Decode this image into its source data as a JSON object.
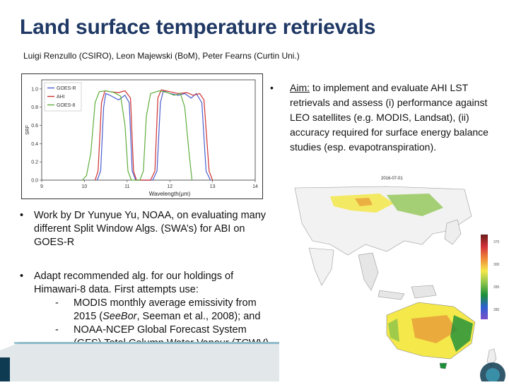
{
  "title": "Land surface temperature retrievals",
  "authors": "Luigi Renzullo (CSIRO), Leon Majewski (BoM), Peter Fearns (Curtin Uni.)",
  "aim": {
    "bullet": "•",
    "label": "Aim:",
    "text": " to implement and evaluate AHI LST retrievals and assess (i) performance against LEO satellites (e.g. MODIS, Landsat), (ii) accuracy required for surface energy balance studies (esp. evapotranspiration)."
  },
  "bullets": {
    "work": "Work by Dr Yunyue Yu, NOAA, on evaluating many different Split Window Algs. (SWA’s) for ABI on GOES-R",
    "adapt": "Adapt recommended alg. for our holdings of Himawari-8 data. First attempts use:",
    "sub": [
      {
        "dash": "-",
        "text_a": "MODIS monthly average emissivity from 2015 (",
        "italic": "SeeBor",
        "text_b": ", Seeman et al., 2008); and"
      },
      {
        "dash": "-",
        "text_a": "NOAA-NCEP Global Forecast System (GFS) Total Column Water Vapour (TCWV)",
        "italic": "",
        "text_b": ""
      }
    ]
  },
  "srf_chart": {
    "chart_data": {
      "type": "line",
      "xlabel": "Wavelength(μm)",
      "ylabel": "SRF",
      "xlim": [
        9,
        14
      ],
      "ylim": [
        0,
        1.1
      ],
      "xticks": [
        9,
        10,
        11,
        12,
        13,
        14
      ],
      "xtick_labels": [
        "9",
        "10",
        "11",
        "12",
        "13",
        "14"
      ],
      "yticks": [
        0,
        0.2,
        0.4,
        0.6,
        0.8,
        1.0
      ],
      "ytick_labels": [
        "0.0",
        "0.2",
        "0.4",
        "0.6",
        "0.8",
        "1.0"
      ],
      "legend_position": "top-left",
      "series": [
        {
          "name": "GOES-R",
          "color": "#4a5fd0",
          "points": [
            [
              10.3,
              0
            ],
            [
              10.38,
              0.1
            ],
            [
              10.45,
              0.8
            ],
            [
              10.5,
              0.95
            ],
            [
              10.6,
              0.93
            ],
            [
              10.8,
              0.88
            ],
            [
              10.95,
              0.93
            ],
            [
              11.05,
              0.85
            ],
            [
              11.12,
              0.1
            ],
            [
              11.2,
              0
            ],
            [
              11.6,
              0
            ],
            [
              11.7,
              0.1
            ],
            [
              11.78,
              0.85
            ],
            [
              11.85,
              0.98
            ],
            [
              12.0,
              0.95
            ],
            [
              12.2,
              0.93
            ],
            [
              12.35,
              0.95
            ],
            [
              12.5,
              0.9
            ],
            [
              12.62,
              0.95
            ],
            [
              12.75,
              0.85
            ],
            [
              12.85,
              0.1
            ],
            [
              12.95,
              0
            ]
          ]
        },
        {
          "name": "AHI",
          "color": "#d03030",
          "points": [
            [
              10.25,
              0
            ],
            [
              10.32,
              0.1
            ],
            [
              10.4,
              0.85
            ],
            [
              10.48,
              0.98
            ],
            [
              10.6,
              0.97
            ],
            [
              10.8,
              0.96
            ],
            [
              10.95,
              0.98
            ],
            [
              11.08,
              0.9
            ],
            [
              11.15,
              0.1
            ],
            [
              11.22,
              0
            ],
            [
              11.55,
              0
            ],
            [
              11.65,
              0.1
            ],
            [
              11.72,
              0.9
            ],
            [
              11.8,
              0.99
            ],
            [
              12.0,
              0.97
            ],
            [
              12.2,
              0.95
            ],
            [
              12.4,
              0.96
            ],
            [
              12.55,
              0.93
            ],
            [
              12.7,
              0.95
            ],
            [
              12.8,
              0.88
            ],
            [
              12.92,
              0.1
            ],
            [
              13.0,
              0
            ]
          ]
        },
        {
          "name": "GOES-8",
          "color": "#5fae3c",
          "points": [
            [
              9.95,
              0
            ],
            [
              10.05,
              0.05
            ],
            [
              10.15,
              0.3
            ],
            [
              10.25,
              0.85
            ],
            [
              10.35,
              0.97
            ],
            [
              10.5,
              0.98
            ],
            [
              10.7,
              0.96
            ],
            [
              10.85,
              0.92
            ],
            [
              10.95,
              0.6
            ],
            [
              11.02,
              0.1
            ],
            [
              11.1,
              0
            ],
            [
              11.3,
              0
            ],
            [
              11.38,
              0.1
            ],
            [
              11.45,
              0.7
            ],
            [
              11.55,
              0.95
            ],
            [
              11.75,
              0.98
            ],
            [
              11.95,
              0.96
            ],
            [
              12.1,
              0.93
            ],
            [
              12.25,
              0.95
            ],
            [
              12.35,
              0.8
            ],
            [
              12.45,
              0.3
            ],
            [
              12.52,
              0
            ]
          ]
        }
      ]
    }
  },
  "map": {
    "title": "2016-07-01",
    "legend_ticks": [
      "370",
      "300",
      "285",
      "280"
    ],
    "colors": {
      "hot": "#d2343b",
      "warm": "#f4e84a",
      "mild": "#8bc34a",
      "cool": "#1a8f3a",
      "cold": "#2f5fd0"
    }
  },
  "theme": {
    "title_color": "#1f3864",
    "band_dark": "#0e3b52",
    "band_teal": "#3a8fa8"
  }
}
